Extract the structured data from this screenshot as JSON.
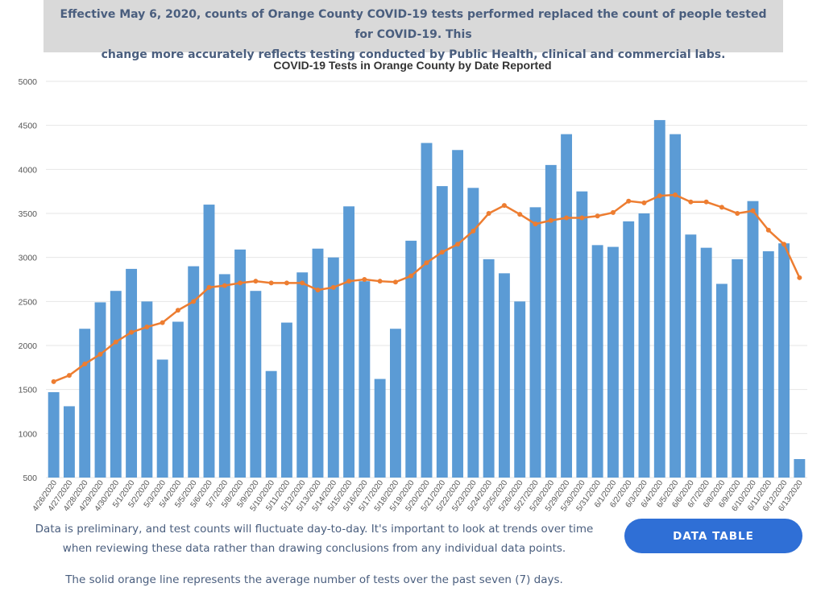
{
  "banner": {
    "line1": "Effective May 6, 2020, counts of Orange County COVID-19 tests performed replaced the count of people tested for COVID-19. This",
    "line2": "change more accurately reflects testing conducted by Public Health, clinical and commercial labs."
  },
  "notes": {
    "line1": "Data is preliminary, and test counts will fluctuate day-to-day. It's important to look at trends over time",
    "line2": "when reviewing these data rather than drawing conclusions from any individual data points.",
    "line3": "The solid orange line represents the average number of tests over the past seven (7) days."
  },
  "button": {
    "data_table": "DATA TABLE"
  },
  "colors": {
    "bar": "#5b9bd5",
    "line": "#ed7d31",
    "button": "#2f6fd6",
    "banner": "#d9d9d9"
  },
  "chart_data": {
    "type": "bar",
    "title": "COVID-19 Tests in Orange County by Date Reported",
    "xlabel": "",
    "ylabel": "",
    "ylim": [
      500,
      5000
    ],
    "yticks": [
      500,
      1000,
      1500,
      2000,
      2500,
      3000,
      3500,
      4000,
      4500,
      5000
    ],
    "grid": true,
    "legend": "none",
    "categories": [
      "4/26/2020",
      "4/27/2020",
      "4/28/2020",
      "4/29/2020",
      "4/30/2020",
      "5/1/2020",
      "5/2/2020",
      "5/3/2020",
      "5/4/2020",
      "5/5/2020",
      "5/6/2020",
      "5/7/2020",
      "5/8/2020",
      "5/9/2020",
      "5/10/2020",
      "5/11/2020",
      "5/12/2020",
      "5/13/2020",
      "5/14/2020",
      "5/15/2020",
      "5/16/2020",
      "5/17/2020",
      "5/18/2020",
      "5/19/2020",
      "5/20/2020",
      "5/21/2020",
      "5/22/2020",
      "5/23/2020",
      "5/24/2020",
      "5/25/2020",
      "5/26/2020",
      "5/27/2020",
      "5/28/2020",
      "5/29/2020",
      "5/30/2020",
      "5/31/2020",
      "6/1/2020",
      "6/2/2020",
      "6/3/2020",
      "6/4/2020",
      "6/5/2020",
      "6/6/2020",
      "6/7/2020",
      "6/8/2020",
      "6/9/2020",
      "6/10/2020",
      "6/11/2020",
      "6/12/2020",
      "6/13/2020"
    ],
    "series": [
      {
        "type": "bar",
        "values": [
          1470,
          1310,
          2190,
          2490,
          2620,
          2870,
          2500,
          1840,
          2270,
          2900,
          3600,
          2810,
          3090,
          2620,
          1710,
          2260,
          2830,
          3100,
          3000,
          3580,
          2730,
          1620,
          2190,
          3190,
          4300,
          3810,
          4220,
          3790,
          2980,
          2820,
          2500,
          3570,
          4050,
          4400,
          3750,
          3140,
          3120,
          3410,
          3500,
          4560,
          4400,
          3260,
          3110,
          2700,
          2980,
          3640,
          3070,
          3160,
          710
        ]
      },
      {
        "type": "line",
        "values": [
          1590,
          1660,
          1790,
          1900,
          2040,
          2150,
          2210,
          2260,
          2400,
          2500,
          2660,
          2680,
          2710,
          2730,
          2710,
          2710,
          2710,
          2630,
          2660,
          2730,
          2750,
          2730,
          2720,
          2790,
          2940,
          3060,
          3150,
          3300,
          3500,
          3590,
          3490,
          3380,
          3420,
          3450,
          3450,
          3470,
          3510,
          3640,
          3620,
          3700,
          3710,
          3630,
          3630,
          3570,
          3500,
          3530,
          3310,
          3150,
          2770
        ]
      }
    ]
  }
}
